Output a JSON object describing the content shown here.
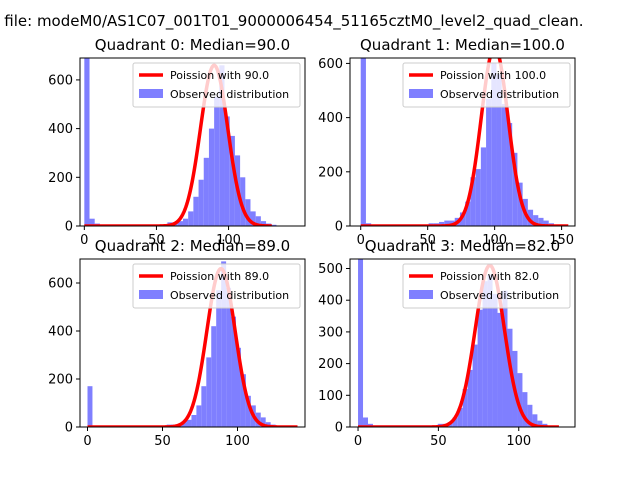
{
  "figure": {
    "suptitle": "n file: modeM0/AS1C07_001T01_9000006454_51165cztM0_level2_quad_clean.",
    "colors": {
      "bars": "#7f7fff",
      "line": "#ff0000"
    }
  },
  "chart_data": [
    {
      "type": "bar",
      "title": "Quadrant 0: Median=90.0",
      "xlim": [
        -3,
        153
      ],
      "ylim": [
        0,
        690
      ],
      "xticks": [
        0,
        50,
        100
      ],
      "yticks": [
        0,
        200,
        400,
        600
      ],
      "bin_width": 3.6,
      "bins": [
        [
          0,
          690
        ],
        [
          3.6,
          30
        ],
        [
          7.2,
          10
        ],
        [
          10.8,
          5
        ],
        [
          14.4,
          5
        ],
        [
          18,
          5
        ],
        [
          21.6,
          5
        ],
        [
          25.2,
          5
        ],
        [
          28.8,
          5
        ],
        [
          32.4,
          5
        ],
        [
          36,
          5
        ],
        [
          39.6,
          5
        ],
        [
          43.2,
          5
        ],
        [
          46.8,
          5
        ],
        [
          50.4,
          5
        ],
        [
          54,
          5
        ],
        [
          57.6,
          15
        ],
        [
          61.2,
          10
        ],
        [
          64.8,
          20
        ],
        [
          68.4,
          30
        ],
        [
          72,
          60
        ],
        [
          75.6,
          120
        ],
        [
          79.2,
          190
        ],
        [
          82.8,
          280
        ],
        [
          86.4,
          400
        ],
        [
          90,
          530
        ],
        [
          93.6,
          660
        ],
        [
          97.2,
          450
        ],
        [
          100.8,
          370
        ],
        [
          104.4,
          290
        ],
        [
          108,
          200
        ],
        [
          111.6,
          110
        ],
        [
          115.2,
          60
        ],
        [
          118.8,
          40
        ],
        [
          122.4,
          20
        ],
        [
          126,
          10
        ],
        [
          129.6,
          5
        ]
      ],
      "curve": {
        "mean": 90.0,
        "peak": 660,
        "range": [
          0,
          130
        ]
      },
      "legend": [
        "Poission with 90.0",
        "Observed distribution"
      ]
    },
    {
      "type": "bar",
      "title": "Quadrant 1: Median=100.0",
      "xlim": [
        -8,
        160
      ],
      "ylim": [
        0,
        620
      ],
      "xticks": [
        0,
        50,
        100,
        150
      ],
      "yticks": [
        0,
        200,
        400,
        600
      ],
      "bin_width": 3.9,
      "bins": [
        [
          0,
          620
        ],
        [
          3.9,
          10
        ],
        [
          7.8,
          5
        ],
        [
          11.7,
          5
        ],
        [
          15.6,
          5
        ],
        [
          19.5,
          5
        ],
        [
          23.4,
          5
        ],
        [
          27.3,
          5
        ],
        [
          31.2,
          5
        ],
        [
          35.1,
          5
        ],
        [
          39,
          5
        ],
        [
          42.9,
          5
        ],
        [
          46.8,
          5
        ],
        [
          50.7,
          10
        ],
        [
          54.6,
          10
        ],
        [
          58.5,
          15
        ],
        [
          62.4,
          20
        ],
        [
          66.3,
          20
        ],
        [
          70.2,
          30
        ],
        [
          74.1,
          50
        ],
        [
          78,
          90
        ],
        [
          81.9,
          180
        ],
        [
          85.8,
          210
        ],
        [
          89.7,
          290
        ],
        [
          93.6,
          470
        ],
        [
          97.5,
          600
        ],
        [
          101.4,
          560
        ],
        [
          105.3,
          450
        ],
        [
          109.2,
          380
        ],
        [
          113.1,
          270
        ],
        [
          117,
          160
        ],
        [
          120.9,
          100
        ],
        [
          124.8,
          60
        ],
        [
          128.7,
          40
        ],
        [
          132.6,
          30
        ],
        [
          136.5,
          20
        ],
        [
          140.4,
          10
        ]
      ],
      "curve": {
        "mean": 100.0,
        "peak": 660,
        "range": [
          0,
          155
        ]
      },
      "legend": [
        "Poission with 100.0",
        "Observed distribution"
      ]
    },
    {
      "type": "bar",
      "title": "Quadrant 2: Median=89.0",
      "xlim": [
        -5,
        145
      ],
      "ylim": [
        0,
        700
      ],
      "xticks": [
        0,
        50,
        100
      ],
      "yticks": [
        0,
        200,
        400,
        600
      ],
      "bin_width": 3.3,
      "bins": [
        [
          0,
          170
        ],
        [
          3.3,
          5
        ],
        [
          6.6,
          5
        ],
        [
          9.9,
          5
        ],
        [
          13.2,
          5
        ],
        [
          16.5,
          5
        ],
        [
          19.8,
          5
        ],
        [
          23.1,
          5
        ],
        [
          26.4,
          5
        ],
        [
          29.7,
          5
        ],
        [
          33,
          5
        ],
        [
          36.3,
          5
        ],
        [
          39.6,
          5
        ],
        [
          42.9,
          5
        ],
        [
          46.2,
          5
        ],
        [
          49.5,
          5
        ],
        [
          52.8,
          10
        ],
        [
          56.1,
          10
        ],
        [
          59.4,
          10
        ],
        [
          62.7,
          20
        ],
        [
          66,
          30
        ],
        [
          69.3,
          50
        ],
        [
          72.6,
          90
        ],
        [
          75.9,
          170
        ],
        [
          79.2,
          290
        ],
        [
          82.5,
          420
        ],
        [
          85.8,
          570
        ],
        [
          89.1,
          690
        ],
        [
          92.4,
          580
        ],
        [
          95.7,
          460
        ],
        [
          99,
          330
        ],
        [
          102.3,
          220
        ],
        [
          105.6,
          130
        ],
        [
          108.9,
          90
        ],
        [
          112.2,
          60
        ],
        [
          115.5,
          40
        ],
        [
          118.8,
          20
        ],
        [
          122.1,
          10
        ]
      ],
      "curve": {
        "mean": 89.0,
        "peak": 660,
        "range": [
          0,
          140
        ]
      },
      "legend": [
        "Poission with 89.0",
        "Observed distribution"
      ]
    },
    {
      "type": "bar",
      "title": "Quadrant 3: Median=82.0",
      "xlim": [
        -5,
        135
      ],
      "ylim": [
        0,
        530
      ],
      "xticks": [
        0,
        50,
        100
      ],
      "yticks": [
        0,
        100,
        200,
        300,
        400,
        500
      ],
      "bin_width": 3.1,
      "bins": [
        [
          0,
          530
        ],
        [
          3.1,
          30
        ],
        [
          6.2,
          10
        ],
        [
          9.3,
          5
        ],
        [
          12.4,
          5
        ],
        [
          15.5,
          5
        ],
        [
          18.6,
          5
        ],
        [
          21.7,
          5
        ],
        [
          24.8,
          5
        ],
        [
          27.9,
          5
        ],
        [
          31,
          5
        ],
        [
          34.1,
          5
        ],
        [
          37.2,
          5
        ],
        [
          40.3,
          5
        ],
        [
          43.4,
          5
        ],
        [
          46.5,
          5
        ],
        [
          49.6,
          10
        ],
        [
          52.7,
          10
        ],
        [
          55.8,
          15
        ],
        [
          58.9,
          30
        ],
        [
          62,
          60
        ],
        [
          65.1,
          120
        ],
        [
          68.2,
          180
        ],
        [
          71.3,
          260
        ],
        [
          74.4,
          370
        ],
        [
          77.5,
          460
        ],
        [
          80.6,
          480
        ],
        [
          83.7,
          420
        ],
        [
          86.8,
          360
        ],
        [
          89.9,
          430
        ],
        [
          93,
          310
        ],
        [
          96.1,
          240
        ],
        [
          99.2,
          170
        ],
        [
          102.3,
          110
        ],
        [
          105.4,
          70
        ],
        [
          108.5,
          40
        ],
        [
          111.6,
          20
        ],
        [
          114.7,
          10
        ]
      ],
      "curve": {
        "mean": 82.0,
        "peak": 510,
        "range": [
          0,
          125
        ]
      },
      "legend": [
        "Poission with 82.0",
        "Observed distribution"
      ]
    }
  ]
}
